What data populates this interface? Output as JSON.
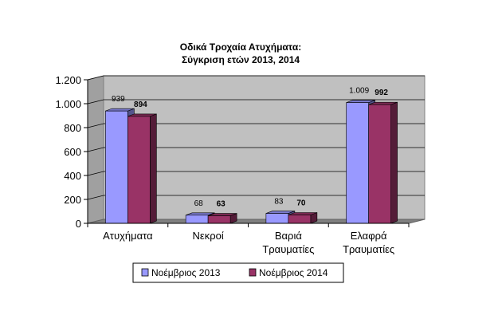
{
  "chart_data": {
    "type": "bar",
    "title": [
      "Οδικά Τροχαία Ατυχήματα:",
      "Σύγκριση ετών 2013, 2014"
    ],
    "categories": [
      [
        "Ατυχήματα"
      ],
      [
        "Νεκροί"
      ],
      [
        "Βαριά",
        "Τραυματίες"
      ],
      [
        "Ελαφρά",
        "Τραυματίες"
      ]
    ],
    "series": [
      {
        "name": "Νοέμβριος 2013",
        "values": [
          939,
          68,
          83,
          1009
        ],
        "labels": [
          "939",
          "68",
          "83",
          "1.009"
        ],
        "color": "#9999ff",
        "label_bold": false
      },
      {
        "name": "Νοέμβριος 2014",
        "values": [
          894,
          63,
          70,
          992
        ],
        "labels": [
          "894",
          "63",
          "70",
          "992"
        ],
        "color": "#993366",
        "label_bold": true
      }
    ],
    "ylim": [
      0,
      1200
    ],
    "yticks": [
      0,
      200,
      400,
      600,
      800,
      1000,
      1200
    ],
    "ytick_labels": [
      "0",
      "200",
      "400",
      "600",
      "800",
      "1.000",
      "1.200"
    ],
    "grid": true,
    "legend_position": "bottom",
    "style": "3d-clustered-bar"
  }
}
